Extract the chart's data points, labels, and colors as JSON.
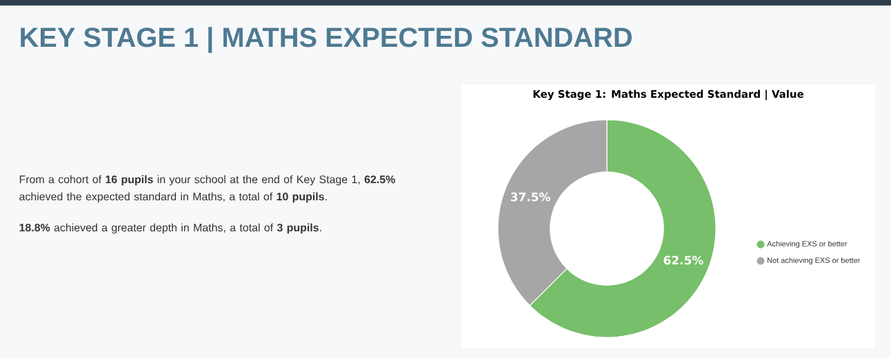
{
  "chart_data": {
    "type": "donut",
    "title": "KEY STAGE 1 | MATHS EXPECTED STANDARD",
    "subtitle": "Key Stage 1: Maths Expected Standard | Value",
    "categories": [
      "Achieving EXS or better",
      "Not achieving EXS or better"
    ],
    "values": [
      62.5,
      37.5
    ],
    "colors": [
      "#77bf6a",
      "#a6a6a6"
    ],
    "value_labels": [
      "62.5%",
      "37.5%"
    ],
    "legend": "right",
    "annotations": [
      "From a cohort of **16 pupils** in your school at the end of Key Stage 1, **62.5%** achieved the expected standard in Maths, a total of **10 pupils**.",
      "**18.8%** achieved a greater depth in Maths, a total of **3 pupils**."
    ]
  }
}
